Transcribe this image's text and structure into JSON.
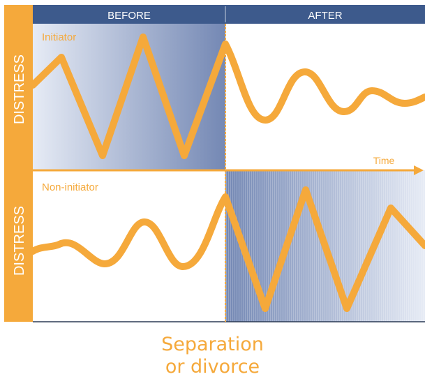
{
  "header": {
    "before_label": "BEFORE",
    "after_label": "AFTER"
  },
  "panels": [
    {
      "axis_label": "DISTRESS",
      "series_name": "Initiator"
    },
    {
      "axis_label": "DISTRESS",
      "series_name": "Non-initiator"
    }
  ],
  "time_label": "Time",
  "event_caption": [
    "Separation",
    "or divorce"
  ],
  "colors": {
    "accent": "#f5a93b",
    "header": "#3d5a8c",
    "frame": "#2b3a55",
    "shade_dark": "#7488b4",
    "shade_light": "#e6ebf5",
    "text_on_dark": "#ffffff"
  }
}
